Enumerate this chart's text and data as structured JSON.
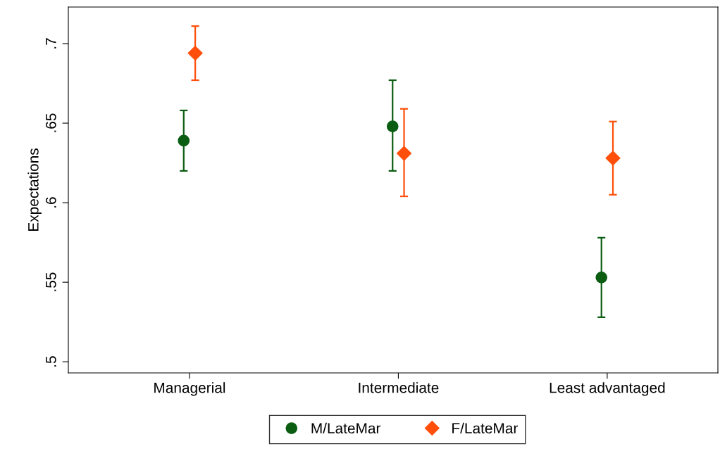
{
  "chart_data": {
    "type": "scatter",
    "ylabel": "Expectations",
    "categories": [
      "Managerial",
      "Intermediate",
      "Least advantaged"
    ],
    "series": [
      {
        "name": "M/LateMar",
        "color": "#0b5d12",
        "marker": "circle",
        "values": [
          0.639,
          0.648,
          0.553
        ],
        "errors": [
          [
            0.62,
            0.658
          ],
          [
            0.62,
            0.677
          ],
          [
            0.528,
            0.578
          ]
        ]
      },
      {
        "name": "F/LateMar",
        "color": "#ff4f0a",
        "marker": "diamond",
        "values": [
          0.694,
          0.631,
          0.628
        ],
        "errors": [
          [
            0.677,
            0.711
          ],
          [
            0.604,
            0.659
          ],
          [
            0.605,
            0.651
          ]
        ]
      }
    ],
    "ylim": [
      0.493,
      0.723
    ],
    "yticks": [
      {
        "value": 0.5,
        "label": ".5"
      },
      {
        "value": 0.55,
        "label": ".55"
      },
      {
        "value": 0.6,
        "label": ".6"
      },
      {
        "value": 0.65,
        "label": ".65"
      },
      {
        "value": 0.7,
        "label": ".7"
      }
    ],
    "grid": false,
    "legend": "bottom"
  }
}
